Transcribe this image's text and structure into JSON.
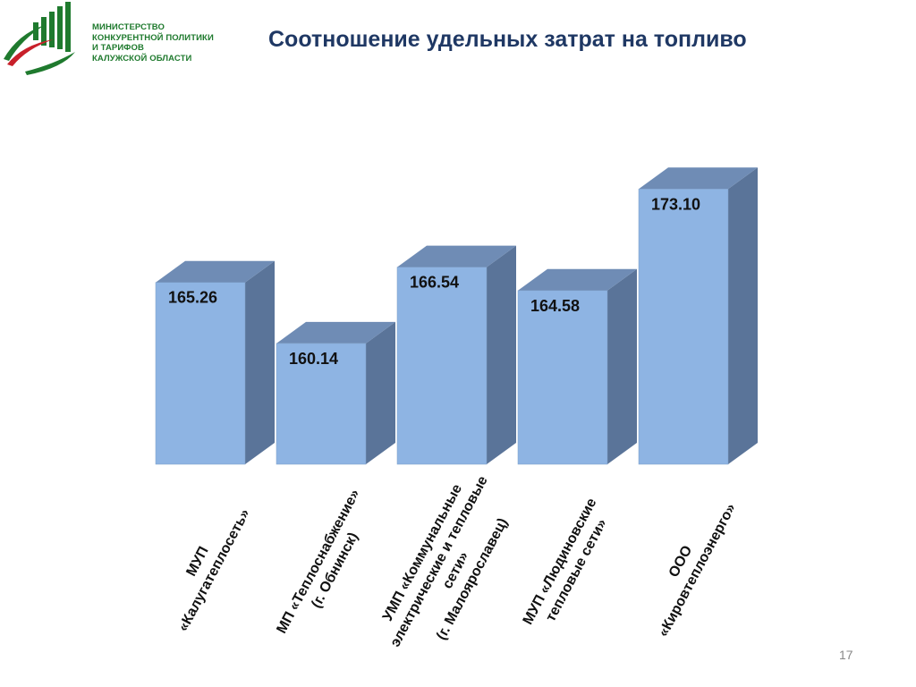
{
  "header": {
    "logo_lines": [
      "МИНИСТЕРСТВО",
      "КОНКУРЕНТНОЙ ПОЛИТИКИ",
      "И ТАРИФОВ",
      "КАЛУЖСКОЙ ОБЛАСТИ"
    ],
    "title": "Соотношение удельных затрат на топливо"
  },
  "colors": {
    "bar_front": "#8eb4e3",
    "bar_side": "#5a7499",
    "bar_top": "#6f8cb5",
    "logo_green": "#1f7a2e",
    "logo_red": "#c8202a",
    "title": "#1f3864"
  },
  "chart_data": {
    "type": "bar",
    "style": "3d-column",
    "title": "",
    "xlabel": "",
    "ylabel": "",
    "ylim": [
      150,
      175
    ],
    "grid": false,
    "legend": "none",
    "categories": [
      [
        "МУП",
        "«Калугатеплосеть»"
      ],
      [
        "МП «Теплоснабжение»",
        "(г. Обнинск)"
      ],
      [
        "УМП «Коммунальные",
        "электрические и тепловые",
        "сети»",
        "(г. Малоярославец)"
      ],
      [
        "МУП «Людиновские",
        "тепловые сети»"
      ],
      [
        "ООО",
        "«Кировтеплоэнерго»"
      ]
    ],
    "values": [
      165.26,
      160.14,
      166.54,
      164.58,
      173.1
    ],
    "data_labels": [
      "165.26",
      "160.14",
      "166.54",
      "164.58",
      "173.10"
    ]
  },
  "footer": {
    "page_number": "17"
  }
}
